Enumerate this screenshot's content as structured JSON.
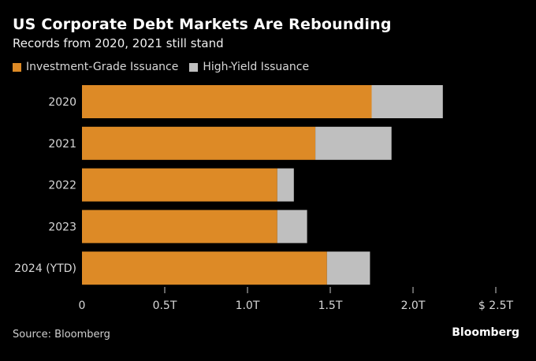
{
  "header": {
    "title": "US Corporate Debt Markets Are Rebounding",
    "subtitle": "Records from 2020, 2021 still stand"
  },
  "footer": {
    "source": "Source: Bloomberg",
    "brand": "Bloomberg"
  },
  "chart_data": {
    "type": "bar",
    "orientation": "horizontal",
    "stacked": true,
    "title": "US Corporate Debt Markets Are Rebounding",
    "subtitle": "Records from 2020, 2021 still stand",
    "categories": [
      "2020",
      "2021",
      "2022",
      "2023",
      "2024 (YTD)"
    ],
    "series": [
      {
        "name": "Investment-Grade Issuance",
        "color": "#dd8a26",
        "values": [
          1.75,
          1.41,
          1.18,
          1.18,
          1.48
        ]
      },
      {
        "name": "High-Yield Issuance",
        "color": "#bfbfbf",
        "values": [
          0.43,
          0.46,
          0.1,
          0.18,
          0.26
        ]
      }
    ],
    "xlabel": "",
    "ylabel": "",
    "xlim": [
      0,
      2.5
    ],
    "x_ticks": [
      0,
      0.5,
      1.0,
      1.5,
      2.0,
      2.5
    ],
    "x_tick_labels": [
      "0",
      "0.5T",
      "1.0T",
      "1.5T",
      "2.0T",
      "$ 2.5T"
    ],
    "units": "trillions USD",
    "grid": false,
    "legend_position": "top-left",
    "source": "Source: Bloomberg"
  }
}
